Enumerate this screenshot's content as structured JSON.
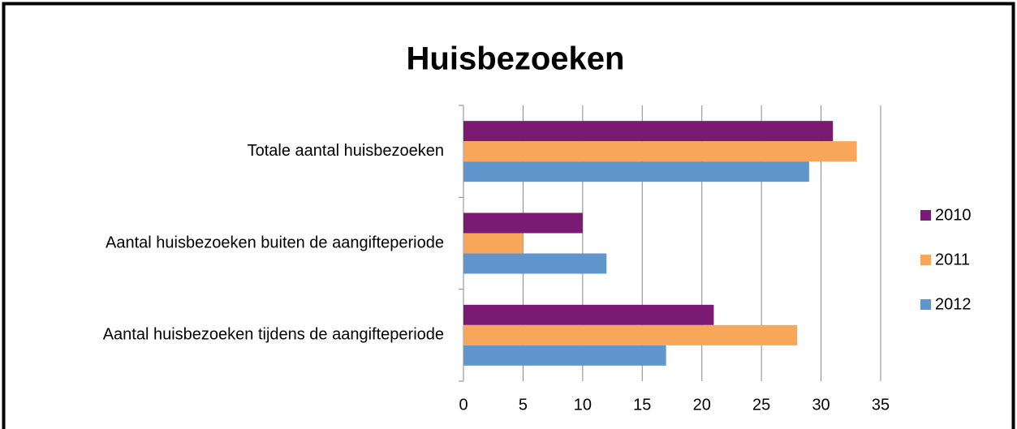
{
  "chart_data": {
    "type": "bar",
    "orientation": "horizontal",
    "title": "Huisbezoeken",
    "categories": [
      "Totale aantal huisbezoeken",
      "Aantal huisbezoeken buiten de aangifteperiode",
      "Aantal huisbezoeken tijdens de aangifteperiode"
    ],
    "series": [
      {
        "name": "2010",
        "color": "#7b1a73",
        "values": [
          31,
          10,
          21
        ]
      },
      {
        "name": "2011",
        "color": "#f8a65a",
        "values": [
          33,
          5,
          28
        ]
      },
      {
        "name": "2012",
        "color": "#6196cc",
        "values": [
          29,
          12,
          17
        ]
      }
    ],
    "xlim": [
      0,
      35
    ],
    "xticks": [
      0,
      5,
      10,
      15,
      20,
      25,
      30,
      35
    ],
    "grid": true,
    "legend": "right"
  }
}
